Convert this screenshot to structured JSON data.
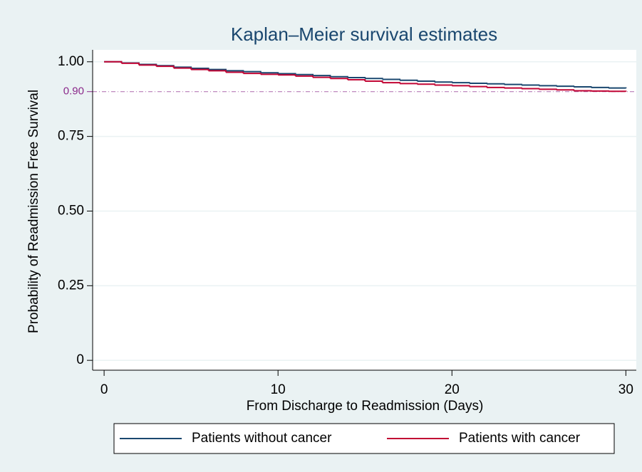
{
  "chart_data": {
    "type": "line",
    "step": true,
    "title": "Kaplan–Meier survival estimates",
    "x_label": "From Discharge to Readmission (Days)",
    "y_label": "Probability of Readmission Free Survival",
    "x": [
      0,
      1,
      2,
      3,
      4,
      5,
      6,
      7,
      8,
      9,
      10,
      11,
      12,
      13,
      14,
      15,
      16,
      17,
      18,
      19,
      20,
      21,
      22,
      23,
      24,
      25,
      26,
      27,
      28,
      29,
      30
    ],
    "series": [
      {
        "name": "Patients without cancer",
        "color": "#1a476f",
        "values": [
          1.0,
          0.996,
          0.991,
          0.987,
          0.982,
          0.978,
          0.974,
          0.97,
          0.967,
          0.963,
          0.96,
          0.957,
          0.954,
          0.95,
          0.947,
          0.944,
          0.941,
          0.938,
          0.935,
          0.932,
          0.93,
          0.928,
          0.926,
          0.924,
          0.922,
          0.92,
          0.918,
          0.916,
          0.914,
          0.912,
          0.911
        ]
      },
      {
        "name": "Patients with cancer",
        "color": "#c10534",
        "values": [
          1.0,
          0.995,
          0.989,
          0.985,
          0.979,
          0.974,
          0.97,
          0.965,
          0.961,
          0.958,
          0.956,
          0.952,
          0.948,
          0.944,
          0.94,
          0.935,
          0.93,
          0.927,
          0.925,
          0.922,
          0.92,
          0.917,
          0.914,
          0.912,
          0.91,
          0.908,
          0.906,
          0.903,
          0.902,
          0.901,
          0.9
        ]
      }
    ],
    "xlim": [
      -0.66,
      30.6
    ],
    "ylim": [
      -0.033,
      1.04
    ],
    "xticks": [
      0,
      10,
      20,
      30
    ],
    "yticks": [
      0,
      0.25,
      {
        "value": 0.5,
        "label": "0.50"
      },
      0.75,
      {
        "value": 1,
        "label": "1.00"
      }
    ],
    "reference_lines": [
      {
        "value": 0.9,
        "label": "0.90",
        "color": "#8b2a8b"
      }
    ],
    "grid": true,
    "legend": "bottom"
  }
}
